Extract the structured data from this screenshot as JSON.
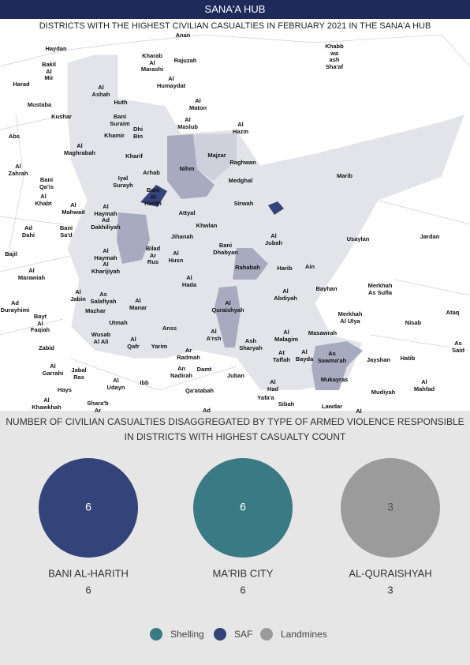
{
  "header": {
    "title": "SANA'A HUB"
  },
  "map": {
    "title": "DISTRICTS WITH THE HIGHEST CIVILIAN CASUALTIES IN FEBRUARY 2021 IN THE SANA'A HUB",
    "labels": [
      "Anan",
      "Haydan",
      "Khabb\nwa\nash\nSha'af",
      "Kharab\nAl\nMarashi",
      "Rajuzah",
      "Bakil\nAl\nMir",
      "Al\nHumaydat",
      "Harad",
      "Al\nAshah",
      "Huth",
      "Al\nMaton",
      "Mustaba",
      "Kushar",
      "Bani\nSuraim",
      "Al\nMaslub",
      "Al\nHazm",
      "Dhi\nBin",
      "Khamir",
      "Abs",
      "Al\nMaghrabah",
      "Kharif",
      "Majzar",
      "Raghwan",
      "Nihm",
      "Al\nZahrah",
      "Arhab",
      "Marib",
      "Iyal\nSurayh",
      "Bani\nQa'is",
      "Medghal",
      "Bani\nAl\nHarith",
      "Al\nKhabt",
      "Sirwah",
      "Al\nMahwait",
      "Al\nHaymah\nAd\nDakhiliyah",
      "Attyal",
      "Khwlan",
      "Ad\nDahi",
      "Bani\nSa'd",
      "Jardan",
      "Al\nJubah",
      "Usaylan",
      "Jihanah",
      "Bani\nDhabyan",
      "Bilad\nAr\nRus",
      "Bajil",
      "Al\nHaymah\nAl\nKharijiyah",
      "Al\nHusn",
      "Rahabah",
      "Harib",
      "Ain",
      "Al\nMarawiah",
      "Al\nHada",
      "Bayhan",
      "Merkhah\nAs Sufla",
      "Al\nAbdiyah",
      "Al\nJabin",
      "As\nSalafiyah",
      "Ad\nDurayhimi",
      "Al\nManar",
      "Al\nQuraishyah",
      "Mazhar",
      "Merkhah\nAl Ulya",
      "Ataq",
      "Bayt\nAl\nFaqiah",
      "Utmah",
      "Nisab",
      "Masawrah",
      "Anss",
      "Al\nMalagim",
      "Al\nA'rsh",
      "Wusab\nAl Ali",
      "Al\nQafr",
      "Yarim",
      "Ash\nSharyah",
      "As\nSaid",
      "Zabid",
      "Ar\nRadmah",
      "Al\nBayda",
      "At\nTaffah",
      "As\nSawma'ah",
      "Hatib",
      "Jayshan",
      "Al\nGarrahi",
      "Jabal\nRas",
      "An\nNadirah",
      "Damt",
      "Juban",
      "Mukayras",
      "Al\nUdayn",
      "Ibb",
      "Al\nMahfad",
      "Hays",
      "Al\nHad",
      "Qa'atabah",
      "Mudiyah",
      "Yafa'a",
      "Al\nKhawkhah",
      "Sibah",
      "Shara'b\nAr",
      "Lawdar",
      "Ad",
      "Al"
    ]
  },
  "chart_data": {
    "type": "pie",
    "title": "NUMBER OF CIVILIAN CASUALTIES DISAGGREGATED BY TYPE OF ARMED VIOLENCE RESPONSIBLE IN DISTRICTS WITH HIGHEST CASUALTY COUNT",
    "categories": [
      "BANI AL-HARITH",
      "MA'RIB CITY",
      "AL-QURAISHYAH"
    ],
    "totals": [
      6,
      6,
      3
    ],
    "series": [
      {
        "name": "Shelling",
        "color": "#3a7a85",
        "values": [
          0,
          6,
          0
        ]
      },
      {
        "name": "SAF",
        "color": "#34437a",
        "values": [
          6,
          0,
          0
        ]
      },
      {
        "name": "Landmines",
        "color": "#9b9b9b",
        "values": [
          0,
          0,
          3
        ]
      }
    ]
  }
}
